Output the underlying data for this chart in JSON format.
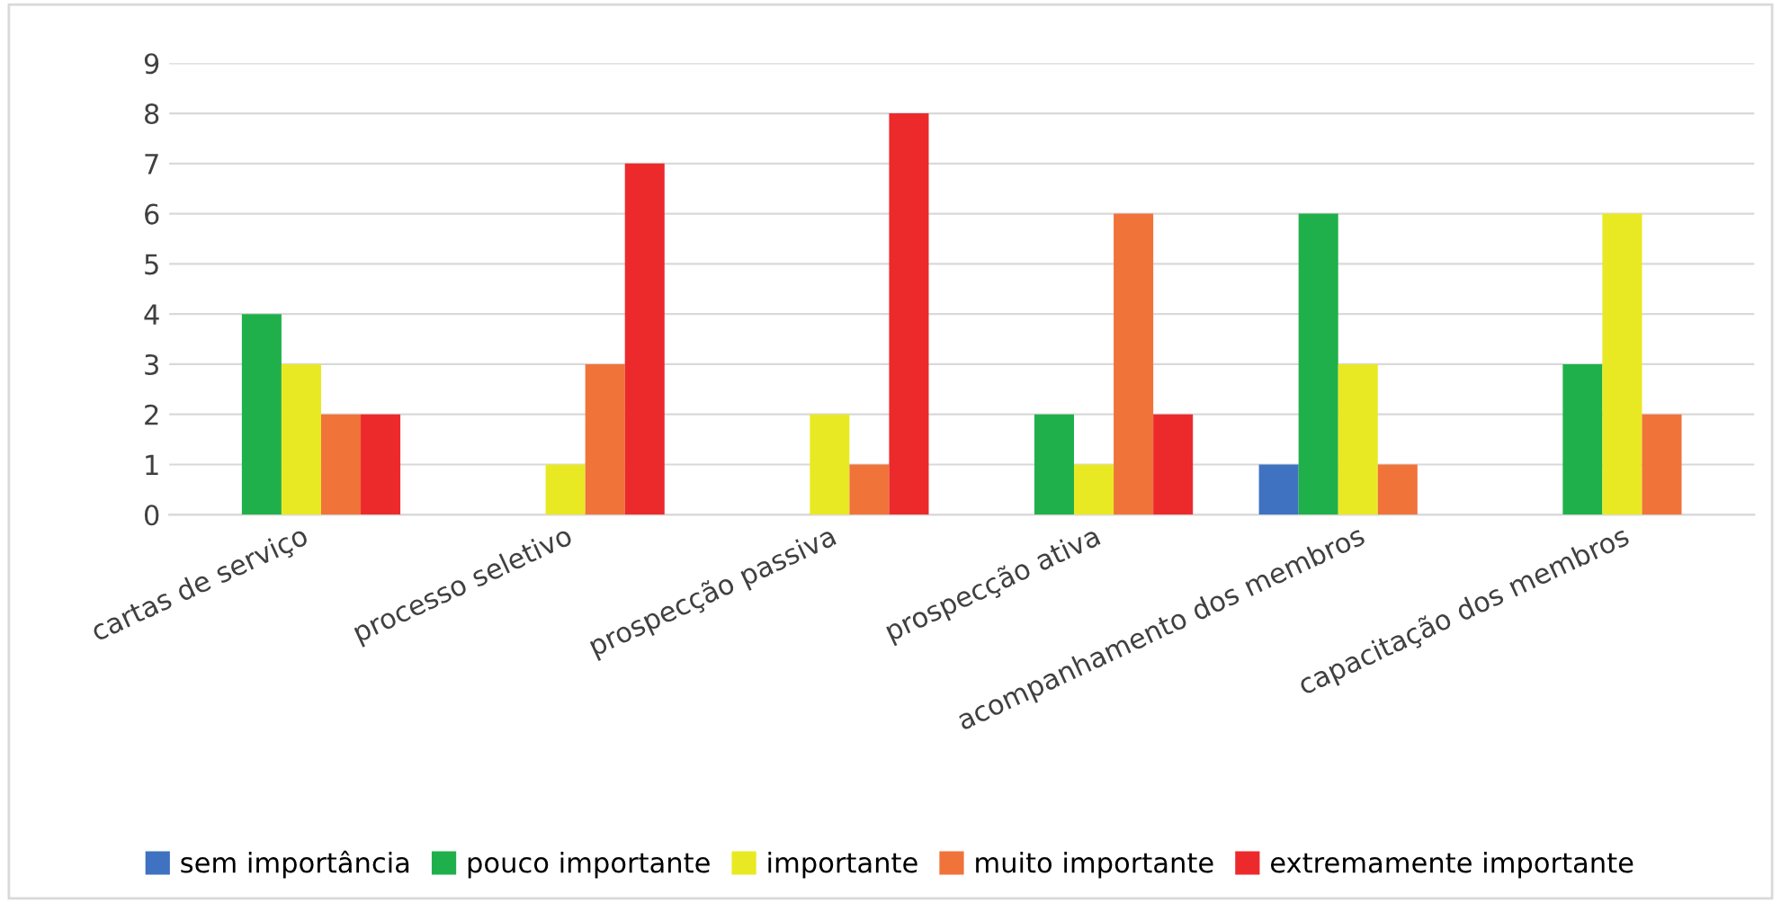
{
  "chart_data": {
    "type": "bar",
    "categories": [
      "cartas de serviço",
      "processo seletivo",
      "prospecção passiva",
      "prospecção ativa",
      "acompanhamento dos membros",
      "capacitação dos membros"
    ],
    "series": [
      {
        "name": "sem importância",
        "color": "#3f72c0",
        "values": [
          0,
          0,
          0,
          0,
          1,
          0
        ]
      },
      {
        "name": "pouco importante",
        "color": "#20b04b",
        "values": [
          4,
          0,
          0,
          2,
          6,
          3
        ]
      },
      {
        "name": "importante",
        "color": "#e9e923",
        "values": [
          3,
          1,
          2,
          1,
          3,
          6
        ]
      },
      {
        "name": "muito importante",
        "color": "#f0733a",
        "values": [
          2,
          3,
          1,
          6,
          1,
          2
        ]
      },
      {
        "name": "extremamente importante",
        "color": "#ec2a2c",
        "values": [
          2,
          7,
          8,
          2,
          0,
          0
        ]
      }
    ],
    "ylim": [
      0,
      9
    ],
    "yticks": [
      0,
      1,
      2,
      3,
      4,
      5,
      6,
      7,
      8,
      9
    ],
    "grid": "y",
    "legend": "bottom"
  }
}
